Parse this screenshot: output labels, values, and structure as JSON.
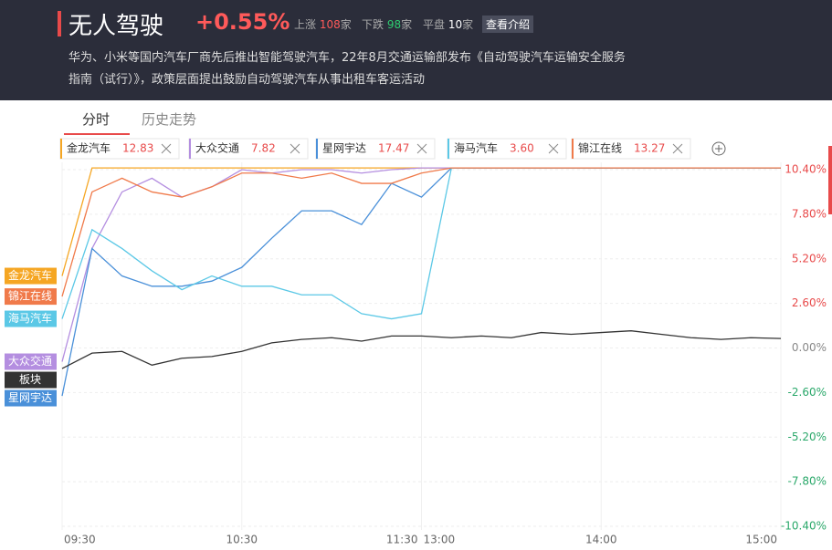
{
  "header": {
    "title": "无人驾驶",
    "change": "+0.55%",
    "up_label": "上涨",
    "up_count": "108",
    "up_unit": "家",
    "down_label": "下跌",
    "down_count": "98",
    "down_unit": "家",
    "flat_label": "平盘",
    "flat_count": "10",
    "flat_unit": "家",
    "button": "查看介绍",
    "description": "华为、小米等国内汽车厂商先后推出智能驾驶汽车，22年8月交通运输部发布《自动驾驶汽车运输安全服务指南（试行）》，政策层面提出鼓励自动驾驶汽车从事出租车客运活动"
  },
  "tabs": [
    "分时",
    "历史走势"
  ],
  "chart_data": {
    "type": "line",
    "x": [
      "09:30",
      "09:40",
      "09:50",
      "10:00",
      "10:10",
      "10:20",
      "10:30",
      "10:40",
      "10:50",
      "11:00",
      "11:10",
      "11:20",
      "11:30",
      "13:10",
      "13:20",
      "13:30",
      "13:40",
      "13:50",
      "14:00",
      "14:10",
      "14:20",
      "14:30",
      "14:40",
      "14:50",
      "15:00"
    ],
    "xticks": [
      "09:30",
      "10:30",
      "11:30",
      "13:00",
      "14:00",
      "15:00"
    ],
    "ylim": [
      -10.4,
      10.4
    ],
    "yticks": [
      {
        "value": 10.4,
        "label": "10.40%"
      },
      {
        "value": 7.8,
        "label": "7.80%"
      },
      {
        "value": 5.2,
        "label": "5.20%"
      },
      {
        "value": 2.6,
        "label": "2.60%"
      },
      {
        "value": 0,
        "label": "0.00%"
      },
      {
        "value": -2.6,
        "label": "-2.60%"
      },
      {
        "value": -5.2,
        "label": "-5.20%"
      },
      {
        "value": -7.8,
        "label": "-7.80%"
      },
      {
        "value": -10.4,
        "label": "-10.40%"
      }
    ],
    "grid": true,
    "series": [
      {
        "name": "金龙汽车",
        "price": "12.83",
        "color": "#f5a623",
        "values": [
          4.2,
          10.5,
          10.5,
          10.5,
          10.5,
          10.5,
          10.5,
          10.5,
          10.5,
          10.5,
          10.5,
          10.5,
          10.5,
          10.5,
          10.5,
          10.5,
          10.5,
          10.5,
          10.5,
          10.5,
          10.5,
          10.5,
          10.5,
          10.5,
          10.5
        ]
      },
      {
        "name": "大众交通",
        "price": "7.82",
        "color": "#b48ee0",
        "values": [
          -0.8,
          5.8,
          9.1,
          9.9,
          8.8,
          9.4,
          10.4,
          10.2,
          10.4,
          10.4,
          10.2,
          10.4,
          10.5,
          10.5,
          10.5,
          10.5,
          10.5,
          10.5,
          10.5,
          10.5,
          10.5,
          10.5,
          10.5,
          10.5,
          10.5
        ]
      },
      {
        "name": "星网宇达",
        "price": "17.47",
        "color": "#4a90d9",
        "values": [
          -2.8,
          5.8,
          4.2,
          3.6,
          3.6,
          3.9,
          4.7,
          6.4,
          8.0,
          8.0,
          7.2,
          9.6,
          8.8,
          10.5,
          10.5,
          10.5,
          10.5,
          10.5,
          10.5,
          10.5,
          10.5,
          10.5,
          10.5,
          10.5,
          10.5
        ]
      },
      {
        "name": "海马汽车",
        "price": "3.60",
        "color": "#5bc8e6",
        "values": [
          1.7,
          6.9,
          5.8,
          4.5,
          3.4,
          4.2,
          3.6,
          3.6,
          3.1,
          3.1,
          2.0,
          1.7,
          2.0,
          10.5,
          10.5,
          10.5,
          10.5,
          10.5,
          10.5,
          10.5,
          10.5,
          10.5,
          10.5,
          10.5,
          10.5
        ]
      },
      {
        "name": "锦江在线",
        "price": "13.27",
        "color": "#f07a4a",
        "values": [
          3.0,
          9.1,
          9.9,
          9.1,
          8.8,
          9.4,
          10.2,
          10.2,
          9.9,
          10.2,
          9.6,
          9.6,
          10.2,
          10.5,
          10.5,
          10.5,
          10.5,
          10.5,
          10.5,
          10.5,
          10.5,
          10.5,
          10.5,
          10.5,
          10.5
        ]
      },
      {
        "name": "板块",
        "color": "#333333",
        "values": [
          -1.2,
          -0.3,
          -0.2,
          -1.0,
          -0.6,
          -0.5,
          -0.2,
          0.3,
          0.5,
          0.6,
          0.4,
          0.7,
          0.7,
          0.6,
          0.7,
          0.6,
          0.9,
          0.8,
          0.9,
          1.0,
          0.8,
          0.6,
          0.5,
          0.6,
          0.55
        ]
      }
    ]
  }
}
